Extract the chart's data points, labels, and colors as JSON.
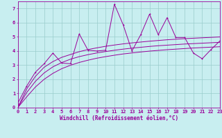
{
  "xlabel": "Windchill (Refroidissement éolien,°C)",
  "bg_color": "#c8eef0",
  "line_color": "#990099",
  "grid_color": "#99cccc",
  "x_data": [
    0,
    1,
    2,
    3,
    4,
    5,
    6,
    7,
    8,
    9,
    10,
    11,
    12,
    13,
    14,
    15,
    16,
    17,
    18,
    19,
    20,
    21,
    22,
    23
  ],
  "y_jagged": [
    0.3,
    1.5,
    2.5,
    3.1,
    3.85,
    3.15,
    3.1,
    5.2,
    4.05,
    4.0,
    4.05,
    7.3,
    5.85,
    4.0,
    5.15,
    6.6,
    5.15,
    6.35,
    4.95,
    4.95,
    3.85,
    3.45,
    4.1,
    4.7
  ],
  "y_smooth_upper": [
    0.0,
    1.3,
    2.2,
    2.85,
    3.25,
    3.55,
    3.75,
    3.95,
    4.1,
    4.22,
    4.33,
    4.42,
    4.5,
    4.57,
    4.63,
    4.69,
    4.74,
    4.79,
    4.83,
    4.87,
    4.9,
    4.93,
    4.96,
    4.99
  ],
  "y_smooth_mid": [
    0.0,
    1.05,
    1.85,
    2.45,
    2.88,
    3.18,
    3.42,
    3.6,
    3.74,
    3.86,
    3.96,
    4.05,
    4.13,
    4.2,
    4.26,
    4.32,
    4.37,
    4.41,
    4.45,
    4.49,
    4.52,
    4.55,
    4.58,
    4.61
  ],
  "y_smooth_lower": [
    0.0,
    0.75,
    1.45,
    2.0,
    2.42,
    2.75,
    2.99,
    3.19,
    3.35,
    3.49,
    3.6,
    3.7,
    3.79,
    3.86,
    3.93,
    3.99,
    4.04,
    4.09,
    4.13,
    4.17,
    4.21,
    4.24,
    4.27,
    4.3
  ],
  "xlim": [
    0,
    23
  ],
  "ylim": [
    0,
    7.5
  ],
  "xticks": [
    0,
    1,
    2,
    3,
    4,
    5,
    6,
    7,
    8,
    9,
    10,
    11,
    12,
    13,
    14,
    15,
    16,
    17,
    18,
    19,
    20,
    21,
    22,
    23
  ],
  "yticks": [
    0,
    1,
    2,
    3,
    4,
    5,
    6,
    7
  ],
  "tick_fontsize": 5.0,
  "xlabel_fontsize": 5.5,
  "marker_size": 2.0,
  "lw": 0.7
}
